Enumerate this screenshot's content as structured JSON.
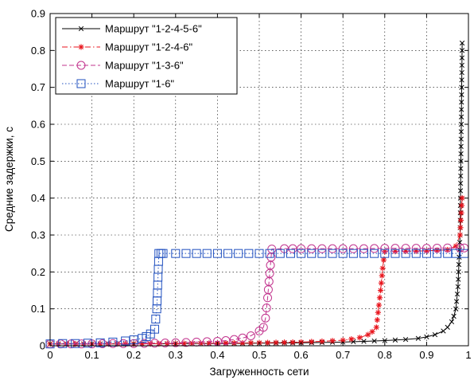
{
  "chart_data": {
    "type": "line",
    "title": "",
    "xlabel": "Загруженность сети",
    "ylabel": "Средние задержки, с",
    "xlim": [
      0,
      1
    ],
    "ylim": [
      0,
      0.9
    ],
    "xticks": [
      0,
      0.1,
      0.2,
      0.3,
      0.4,
      0.5,
      0.6,
      0.7,
      0.8,
      0.9,
      1
    ],
    "xtick_labels": [
      "0",
      "0.1",
      "0.2",
      "0.3",
      "0.4",
      "0.5",
      "0.6",
      "0.7",
      "0.8",
      "0.9",
      "1"
    ],
    "yticks": [
      0,
      0.1,
      0.2,
      0.3,
      0.4,
      0.5,
      0.6,
      0.7,
      0.8,
      0.9
    ],
    "ytick_labels": [
      "0",
      "0.1",
      "0.2",
      "0.3",
      "0.4",
      "0.5",
      "0.6",
      "0.7",
      "0.8",
      "0.9"
    ],
    "grid": true,
    "legend_position": "top-left",
    "series": [
      {
        "name": "Маршрут \"1-2-4-5-6\"",
        "color": "#000000",
        "line_style": "solid",
        "marker": "x",
        "x": [
          0.0,
          0.1,
          0.2,
          0.3,
          0.4,
          0.5,
          0.6,
          0.65,
          0.7,
          0.75,
          0.8,
          0.85,
          0.88,
          0.9,
          0.92,
          0.94,
          0.95,
          0.96,
          0.965,
          0.97,
          0.975,
          0.98,
          0.985
        ],
        "y": [
          0.005,
          0.005,
          0.005,
          0.006,
          0.006,
          0.007,
          0.008,
          0.009,
          0.01,
          0.012,
          0.014,
          0.017,
          0.02,
          0.024,
          0.03,
          0.04,
          0.05,
          0.065,
          0.08,
          0.1,
          0.16,
          0.3,
          0.82
        ]
      },
      {
        "name": "Маршрут \"1-2-4-6\"",
        "color": "#e8141c",
        "line_style": "dashdot",
        "marker": "star",
        "x": [
          0.0,
          0.1,
          0.2,
          0.3,
          0.4,
          0.5,
          0.6,
          0.65,
          0.7,
          0.72,
          0.74,
          0.76,
          0.77,
          0.78,
          0.79,
          0.795,
          0.8,
          0.85,
          0.9,
          0.95,
          0.97,
          0.98,
          0.985
        ],
        "y": [
          0.005,
          0.005,
          0.005,
          0.006,
          0.007,
          0.008,
          0.01,
          0.012,
          0.015,
          0.018,
          0.022,
          0.03,
          0.038,
          0.05,
          0.15,
          0.21,
          0.255,
          0.256,
          0.257,
          0.26,
          0.27,
          0.3,
          0.4
        ]
      },
      {
        "name": "Маршрут \"1-3-6\"",
        "color": "#c2348e",
        "line_style": "dashed",
        "marker": "circle",
        "x": [
          0.0,
          0.05,
          0.1,
          0.15,
          0.2,
          0.25,
          0.3,
          0.35,
          0.4,
          0.42,
          0.44,
          0.46,
          0.48,
          0.5,
          0.51,
          0.515,
          0.52,
          0.53,
          0.56,
          0.6,
          0.65,
          0.7,
          0.75,
          0.8,
          0.85,
          0.9,
          0.95,
          0.98,
          0.99
        ],
        "y": [
          0.005,
          0.005,
          0.005,
          0.006,
          0.006,
          0.007,
          0.008,
          0.01,
          0.012,
          0.014,
          0.017,
          0.021,
          0.027,
          0.04,
          0.05,
          0.075,
          0.13,
          0.262,
          0.263,
          0.263,
          0.263,
          0.263,
          0.263,
          0.264,
          0.264,
          0.264,
          0.265,
          0.265,
          0.265
        ]
      },
      {
        "name": "Маршрут \"1-6\"",
        "color": "#1f4fbf",
        "line_style": "dotted",
        "marker": "square",
        "x": [
          0.0,
          0.03,
          0.06,
          0.09,
          0.12,
          0.15,
          0.18,
          0.2,
          0.22,
          0.23,
          0.24,
          0.25,
          0.255,
          0.26,
          0.265,
          0.27,
          0.3,
          0.35,
          0.4,
          0.45,
          0.5,
          0.55,
          0.6,
          0.65,
          0.7,
          0.75,
          0.8,
          0.85,
          0.9,
          0.95,
          0.99
        ],
        "y": [
          0.005,
          0.006,
          0.006,
          0.007,
          0.008,
          0.01,
          0.013,
          0.016,
          0.02,
          0.025,
          0.032,
          0.045,
          0.1,
          0.25,
          0.25,
          0.25,
          0.25,
          0.25,
          0.25,
          0.25,
          0.25,
          0.25,
          0.25,
          0.25,
          0.25,
          0.25,
          0.25,
          0.25,
          0.25,
          0.25,
          0.25
        ]
      }
    ]
  }
}
